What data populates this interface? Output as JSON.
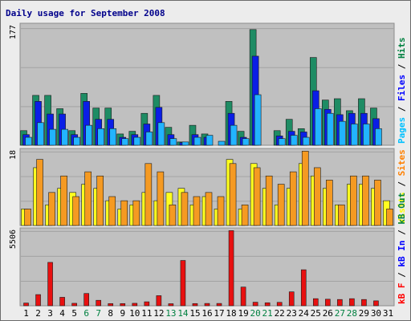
{
  "chart_data": {
    "type": "bar",
    "title": "Daily usage for September 2008",
    "days": [
      "1",
      "2",
      "3",
      "4",
      "5",
      "6",
      "7",
      "8",
      "9",
      "10",
      "11",
      "12",
      "13",
      "14",
      "15",
      "16",
      "17",
      "18",
      "19",
      "20",
      "21",
      "22",
      "23",
      "24",
      "25",
      "26",
      "27",
      "28",
      "29",
      "30",
      "31"
    ],
    "weekend_days": [
      "6",
      "7",
      "13",
      "14",
      "20",
      "21",
      "27",
      "28"
    ],
    "panels": [
      {
        "id": "hits-files-pages",
        "ymax_label": "177",
        "ymax": 177,
        "side_legend": [
          {
            "text": "Pages",
            "color": "#00c0ff"
          },
          {
            "text": " / ",
            "color": "#000000"
          },
          {
            "text": "Files",
            "color": "#0000ff"
          },
          {
            "text": " / ",
            "color": "#000000"
          },
          {
            "text": "Hits",
            "color": "#008040"
          }
        ],
        "series": [
          {
            "name": "Hits",
            "color": "#1e8c64",
            "values": [
              22,
              75,
              75,
              55,
              22,
              78,
              56,
              56,
              17,
              21,
              48,
              75,
              27,
              5,
              30,
              17,
              0,
              66,
              21,
              174,
              0,
              22,
              39,
              25,
              132,
              68,
              70,
              52,
              70,
              56,
              0
            ]
          },
          {
            "name": "Files",
            "color": "#0a1ee6",
            "values": [
              16,
              66,
              47,
              47,
              16,
              66,
              39,
              39,
              12,
              16,
              32,
              57,
              16,
              4,
              16,
              12,
              0,
              48,
              12,
              134,
              0,
              14,
              21,
              20,
              82,
              54,
              46,
              48,
              48,
              40,
              0
            ]
          },
          {
            "name": "Pages",
            "color": "#22b4ff",
            "values": [
              12,
              34,
              24,
              24,
              12,
              30,
              25,
              25,
              10,
              12,
              20,
              34,
              10,
              5,
              12,
              15,
              6,
              30,
              10,
              76,
              0,
              10,
              15,
              12,
              55,
              48,
              36,
              32,
              32,
              25,
              0
            ]
          }
        ]
      },
      {
        "id": "visits-sites",
        "ymax_label": "18",
        "ymax": 18,
        "side_legend": [
          {
            "text": "Visits",
            "color": "#ffff00"
          },
          {
            "text": " / ",
            "color": "#000000"
          },
          {
            "text": "Sites",
            "color": "#ff8000"
          }
        ],
        "series": [
          {
            "name": "Visits",
            "color": "#ffff20",
            "values": [
              4,
              14,
              5,
              9,
              8,
              10,
              9,
              6,
              4,
              5,
              8,
              6,
              8,
              9,
              5,
              7,
              4,
              16,
              4,
              15,
              9,
              5,
              9,
              15,
              12,
              9,
              5,
              10,
              10,
              9,
              6
            ]
          },
          {
            "name": "Sites",
            "color": "#f59a22",
            "values": [
              4,
              16,
              8,
              12,
              7,
              13,
              12,
              7,
              6,
              6,
              15,
              13,
              5,
              8,
              7,
              8,
              7,
              15,
              5,
              14,
              12,
              10,
              13,
              18,
              14,
              11,
              5,
              12,
              12,
              11,
              4
            ]
          }
        ]
      },
      {
        "id": "kb",
        "ymax_label": "5506",
        "ymax": 5506,
        "side_legend": [
          {
            "text": "kB F",
            "color": "#ff0000"
          },
          {
            "text": " / ",
            "color": "#000000"
          },
          {
            "text": "kB In",
            "color": "#0000ff"
          },
          {
            "text": " / ",
            "color": "#000000"
          },
          {
            "text": "kB Out",
            "color": "#008040"
          }
        ],
        "series": [
          {
            "name": "kB F",
            "color": "#e81010",
            "values": [
              200,
              820,
              3180,
              620,
              180,
              900,
              400,
              160,
              160,
              180,
              290,
              740,
              150,
              3320,
              160,
              170,
              170,
              5506,
              1370,
              260,
              220,
              250,
              1020,
              2640,
              520,
              480,
              460,
              520,
              460,
              360,
              0
            ]
          }
        ]
      }
    ]
  }
}
